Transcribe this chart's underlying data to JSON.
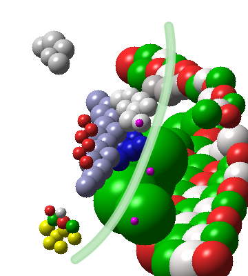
{
  "bg_color": "#ffffff",
  "figsize": [
    3.6,
    4.0
  ],
  "dpi": 100,
  "image_b64": ""
}
